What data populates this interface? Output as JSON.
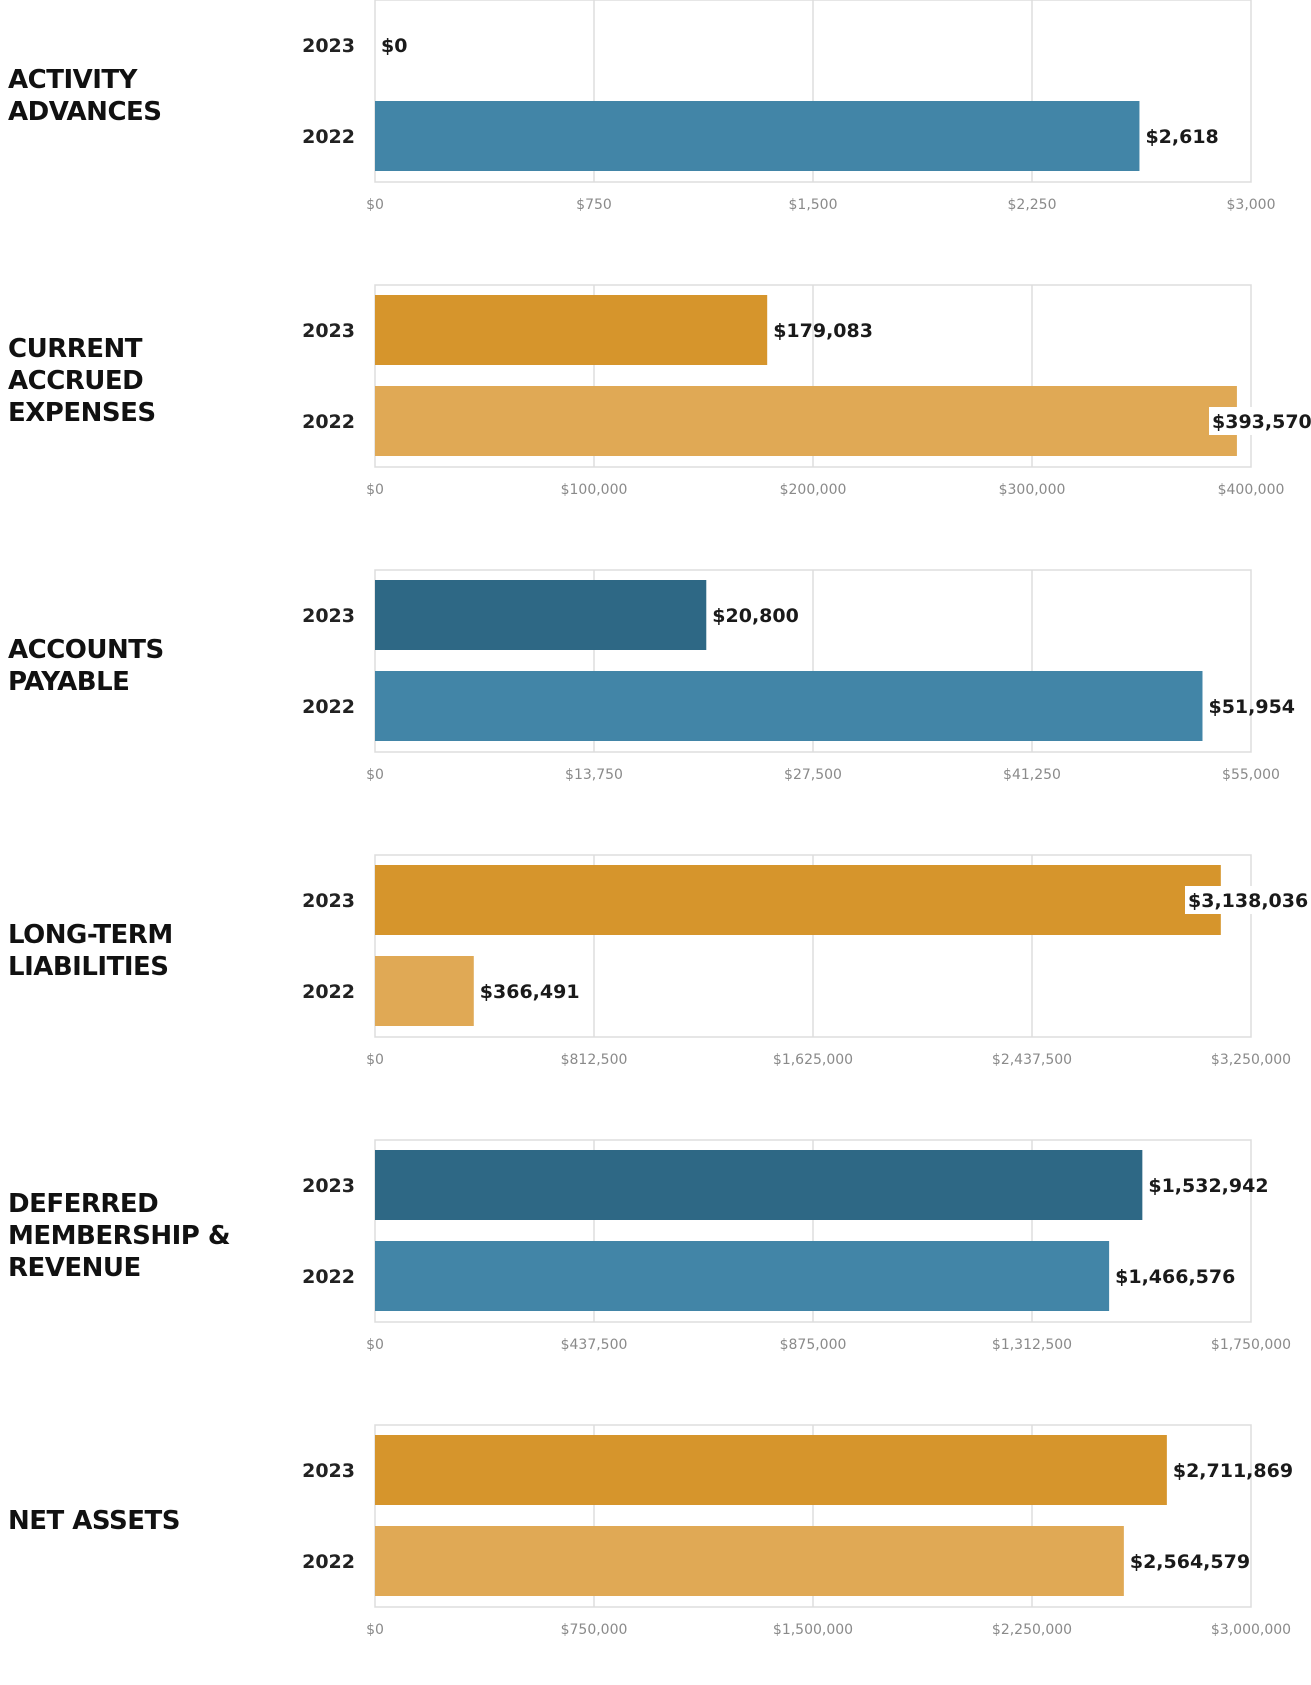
{
  "colors": {
    "blue_2023": "#2e6885",
    "blue_2022": "#4285a7",
    "orange_2023": "#d6952c",
    "orange_2022": "#e0a955"
  },
  "chart_data": [
    {
      "type": "bar",
      "title": "ACTIVITY\nADVANCES",
      "categories": [
        "2023",
        "2022"
      ],
      "values": [
        0,
        2618
      ],
      "value_labels": [
        "$0",
        "$2,618"
      ],
      "xlim": [
        0,
        3000
      ],
      "ticks": [
        "$0",
        "$750",
        "$1,500",
        "$2,250",
        "$3,000"
      ],
      "bar_colors": [
        "#2e6885",
        "#4285a7"
      ],
      "grid": true
    },
    {
      "type": "bar",
      "title": "CURRENT\nACCRUED\nEXPENSES",
      "categories": [
        "2023",
        "2022"
      ],
      "values": [
        179083,
        393570
      ],
      "value_labels": [
        "$179,083",
        "$393,570"
      ],
      "xlim": [
        0,
        400000
      ],
      "ticks": [
        "$0",
        "$100,000",
        "$200,000",
        "$300,000",
        "$400,000"
      ],
      "bar_colors": [
        "#d6952c",
        "#e0a955"
      ],
      "grid": true
    },
    {
      "type": "bar",
      "title": "ACCOUNTS\nPAYABLE",
      "categories": [
        "2023",
        "2022"
      ],
      "values": [
        20800,
        51954
      ],
      "value_labels": [
        "$20,800",
        "$51,954"
      ],
      "xlim": [
        0,
        55000
      ],
      "ticks": [
        "$0",
        "$13,750",
        "$27,500",
        "$41,250",
        "$55,000"
      ],
      "bar_colors": [
        "#2e6885",
        "#4285a7"
      ],
      "grid": true
    },
    {
      "type": "bar",
      "title": "LONG-TERM\nLIABILITIES",
      "categories": [
        "2023",
        "2022"
      ],
      "values": [
        3138036,
        366491
      ],
      "value_labels": [
        "$3,138,036",
        "$366,491"
      ],
      "xlim": [
        0,
        3250000
      ],
      "ticks": [
        "$0",
        "$812,500",
        "$1,625,000",
        "$2,437,500",
        "$3,250,000"
      ],
      "bar_colors": [
        "#d6952c",
        "#e0a955"
      ],
      "grid": true
    },
    {
      "type": "bar",
      "title": "DEFERRED\nMEMBERSHIP &\nREVENUE",
      "categories": [
        "2023",
        "2022"
      ],
      "values": [
        1532942,
        1466576
      ],
      "value_labels": [
        "$1,532,942",
        "$1,466,576"
      ],
      "xlim": [
        0,
        1750000
      ],
      "ticks": [
        "$0",
        "$437,500",
        "$875,000",
        "$1,312,500",
        "$1,750,000"
      ],
      "bar_colors": [
        "#2e6885",
        "#4285a7"
      ],
      "grid": true
    },
    {
      "type": "bar",
      "title": "NET ASSETS",
      "categories": [
        "2023",
        "2022"
      ],
      "values": [
        2711869,
        2564579
      ],
      "value_labels": [
        "$2,711,869",
        "$2,564,579"
      ],
      "xlim": [
        0,
        3000000
      ],
      "ticks": [
        "$0",
        "$750,000",
        "$1,500,000",
        "$2,250,000",
        "$3,000,000"
      ],
      "bar_colors": [
        "#d6952c",
        "#e0a955"
      ],
      "grid": true
    }
  ]
}
